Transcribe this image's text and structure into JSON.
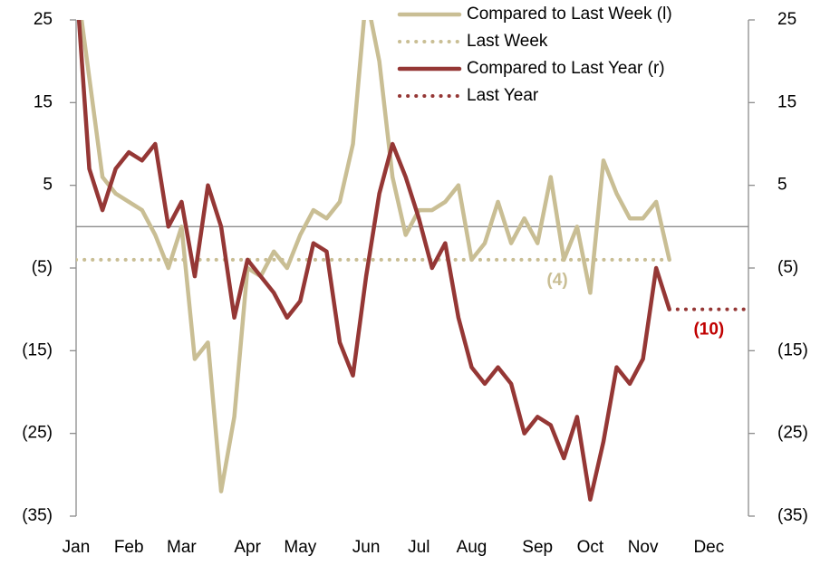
{
  "chart_data": {
    "type": "line",
    "categories": [
      "Jan",
      null,
      null,
      null,
      "Feb",
      null,
      null,
      null,
      "Mar",
      null,
      null,
      null,
      null,
      "Apr",
      null,
      null,
      null,
      "May",
      null,
      null,
      null,
      null,
      "Jun",
      null,
      null,
      null,
      "Jul",
      null,
      null,
      null,
      "Aug",
      null,
      null,
      null,
      null,
      "Sep",
      null,
      null,
      null,
      "Oct",
      null,
      null,
      null,
      "Nov",
      null,
      null,
      null,
      null,
      "Dec",
      null,
      null,
      null
    ],
    "series": [
      {
        "name": "Compared to Last Week (l)",
        "color": "#c9be94",
        "style": "solid",
        "axis": "y",
        "values": [
          30,
          18,
          6,
          4,
          3,
          2,
          -1,
          -5,
          0,
          -16,
          -14,
          -32,
          -23,
          -5,
          -6,
          -3,
          -5,
          -1,
          2,
          1,
          3,
          10,
          28,
          20,
          6,
          -1,
          2,
          2,
          3,
          5,
          -4,
          -2,
          3,
          -2,
          1,
          -2,
          6,
          -4,
          0,
          -8,
          8,
          4,
          1,
          1,
          3,
          -4,
          null,
          null,
          null,
          null,
          null,
          null
        ]
      },
      {
        "name": "Last Week",
        "color": "#c9be94",
        "style": "dotted",
        "axis": "y",
        "values": [
          -4,
          -4,
          -4,
          -4,
          -4,
          -4,
          -4,
          -4,
          -4,
          -4,
          -4,
          -4,
          -4,
          -4,
          -4,
          -4,
          -4,
          -4,
          -4,
          -4,
          -4,
          -4,
          -4,
          -4,
          -4,
          -4,
          -4,
          -4,
          -4,
          -4,
          -4,
          -4,
          -4,
          -4,
          -4,
          -4,
          -4,
          -4,
          -4,
          -4,
          -4,
          -4,
          -4,
          -4,
          -4,
          -4,
          null,
          null,
          null,
          null,
          null,
          null
        ]
      },
      {
        "name": "Compared to Last Year (r)",
        "color": "#953735",
        "style": "solid",
        "axis": "y2",
        "values": [
          30,
          7,
          2,
          7,
          9,
          8,
          10,
          0,
          3,
          -6,
          5,
          0,
          -11,
          -4,
          -6,
          -8,
          -11,
          -9,
          -2,
          -3,
          -14,
          -18,
          -6,
          4,
          10,
          6,
          1,
          -5,
          -2,
          -11,
          -17,
          -19,
          -17,
          -19,
          -25,
          -23,
          -24,
          -28,
          -23,
          -33,
          -26,
          -17,
          -19,
          -16,
          -5,
          -10,
          null,
          null,
          null,
          null,
          null,
          null
        ]
      },
      {
        "name": "Last Year",
        "color": "#953735",
        "style": "dotted",
        "axis": "y2",
        "values": [
          null,
          null,
          null,
          null,
          null,
          null,
          null,
          null,
          null,
          null,
          null,
          null,
          null,
          null,
          null,
          null,
          null,
          null,
          null,
          null,
          null,
          null,
          null,
          null,
          null,
          null,
          null,
          null,
          null,
          null,
          null,
          null,
          null,
          null,
          null,
          null,
          null,
          null,
          null,
          null,
          null,
          null,
          null,
          null,
          null,
          -10,
          -10,
          -10,
          -10,
          -10,
          -10,
          -10
        ]
      }
    ],
    "annotations": [
      {
        "value": -4,
        "label": "(4)",
        "color": "#c9be94"
      },
      {
        "value": -10,
        "label": "(10)",
        "color": "#c00000"
      }
    ],
    "ylim": [
      -35,
      25
    ],
    "yticks": [
      {
        "value": 25,
        "label": "25"
      },
      {
        "value": 15,
        "label": "15"
      },
      {
        "value": 5,
        "label": "5"
      },
      {
        "value": -5,
        "label": "(5)"
      },
      {
        "value": -15,
        "label": "(15)"
      },
      {
        "value": -25,
        "label": "(25)"
      },
      {
        "value": -35,
        "label": "(35)"
      }
    ],
    "y2lim": [
      -35,
      25
    ],
    "y2ticks": [
      {
        "value": 25,
        "label": "25"
      },
      {
        "value": 15,
        "label": "15"
      },
      {
        "value": 5,
        "label": "5"
      },
      {
        "value": -5,
        "label": "(5)"
      },
      {
        "value": -15,
        "label": "(15)"
      },
      {
        "value": -25,
        "label": "(25)"
      },
      {
        "value": -35,
        "label": "(35)"
      }
    ],
    "legend": "top"
  }
}
